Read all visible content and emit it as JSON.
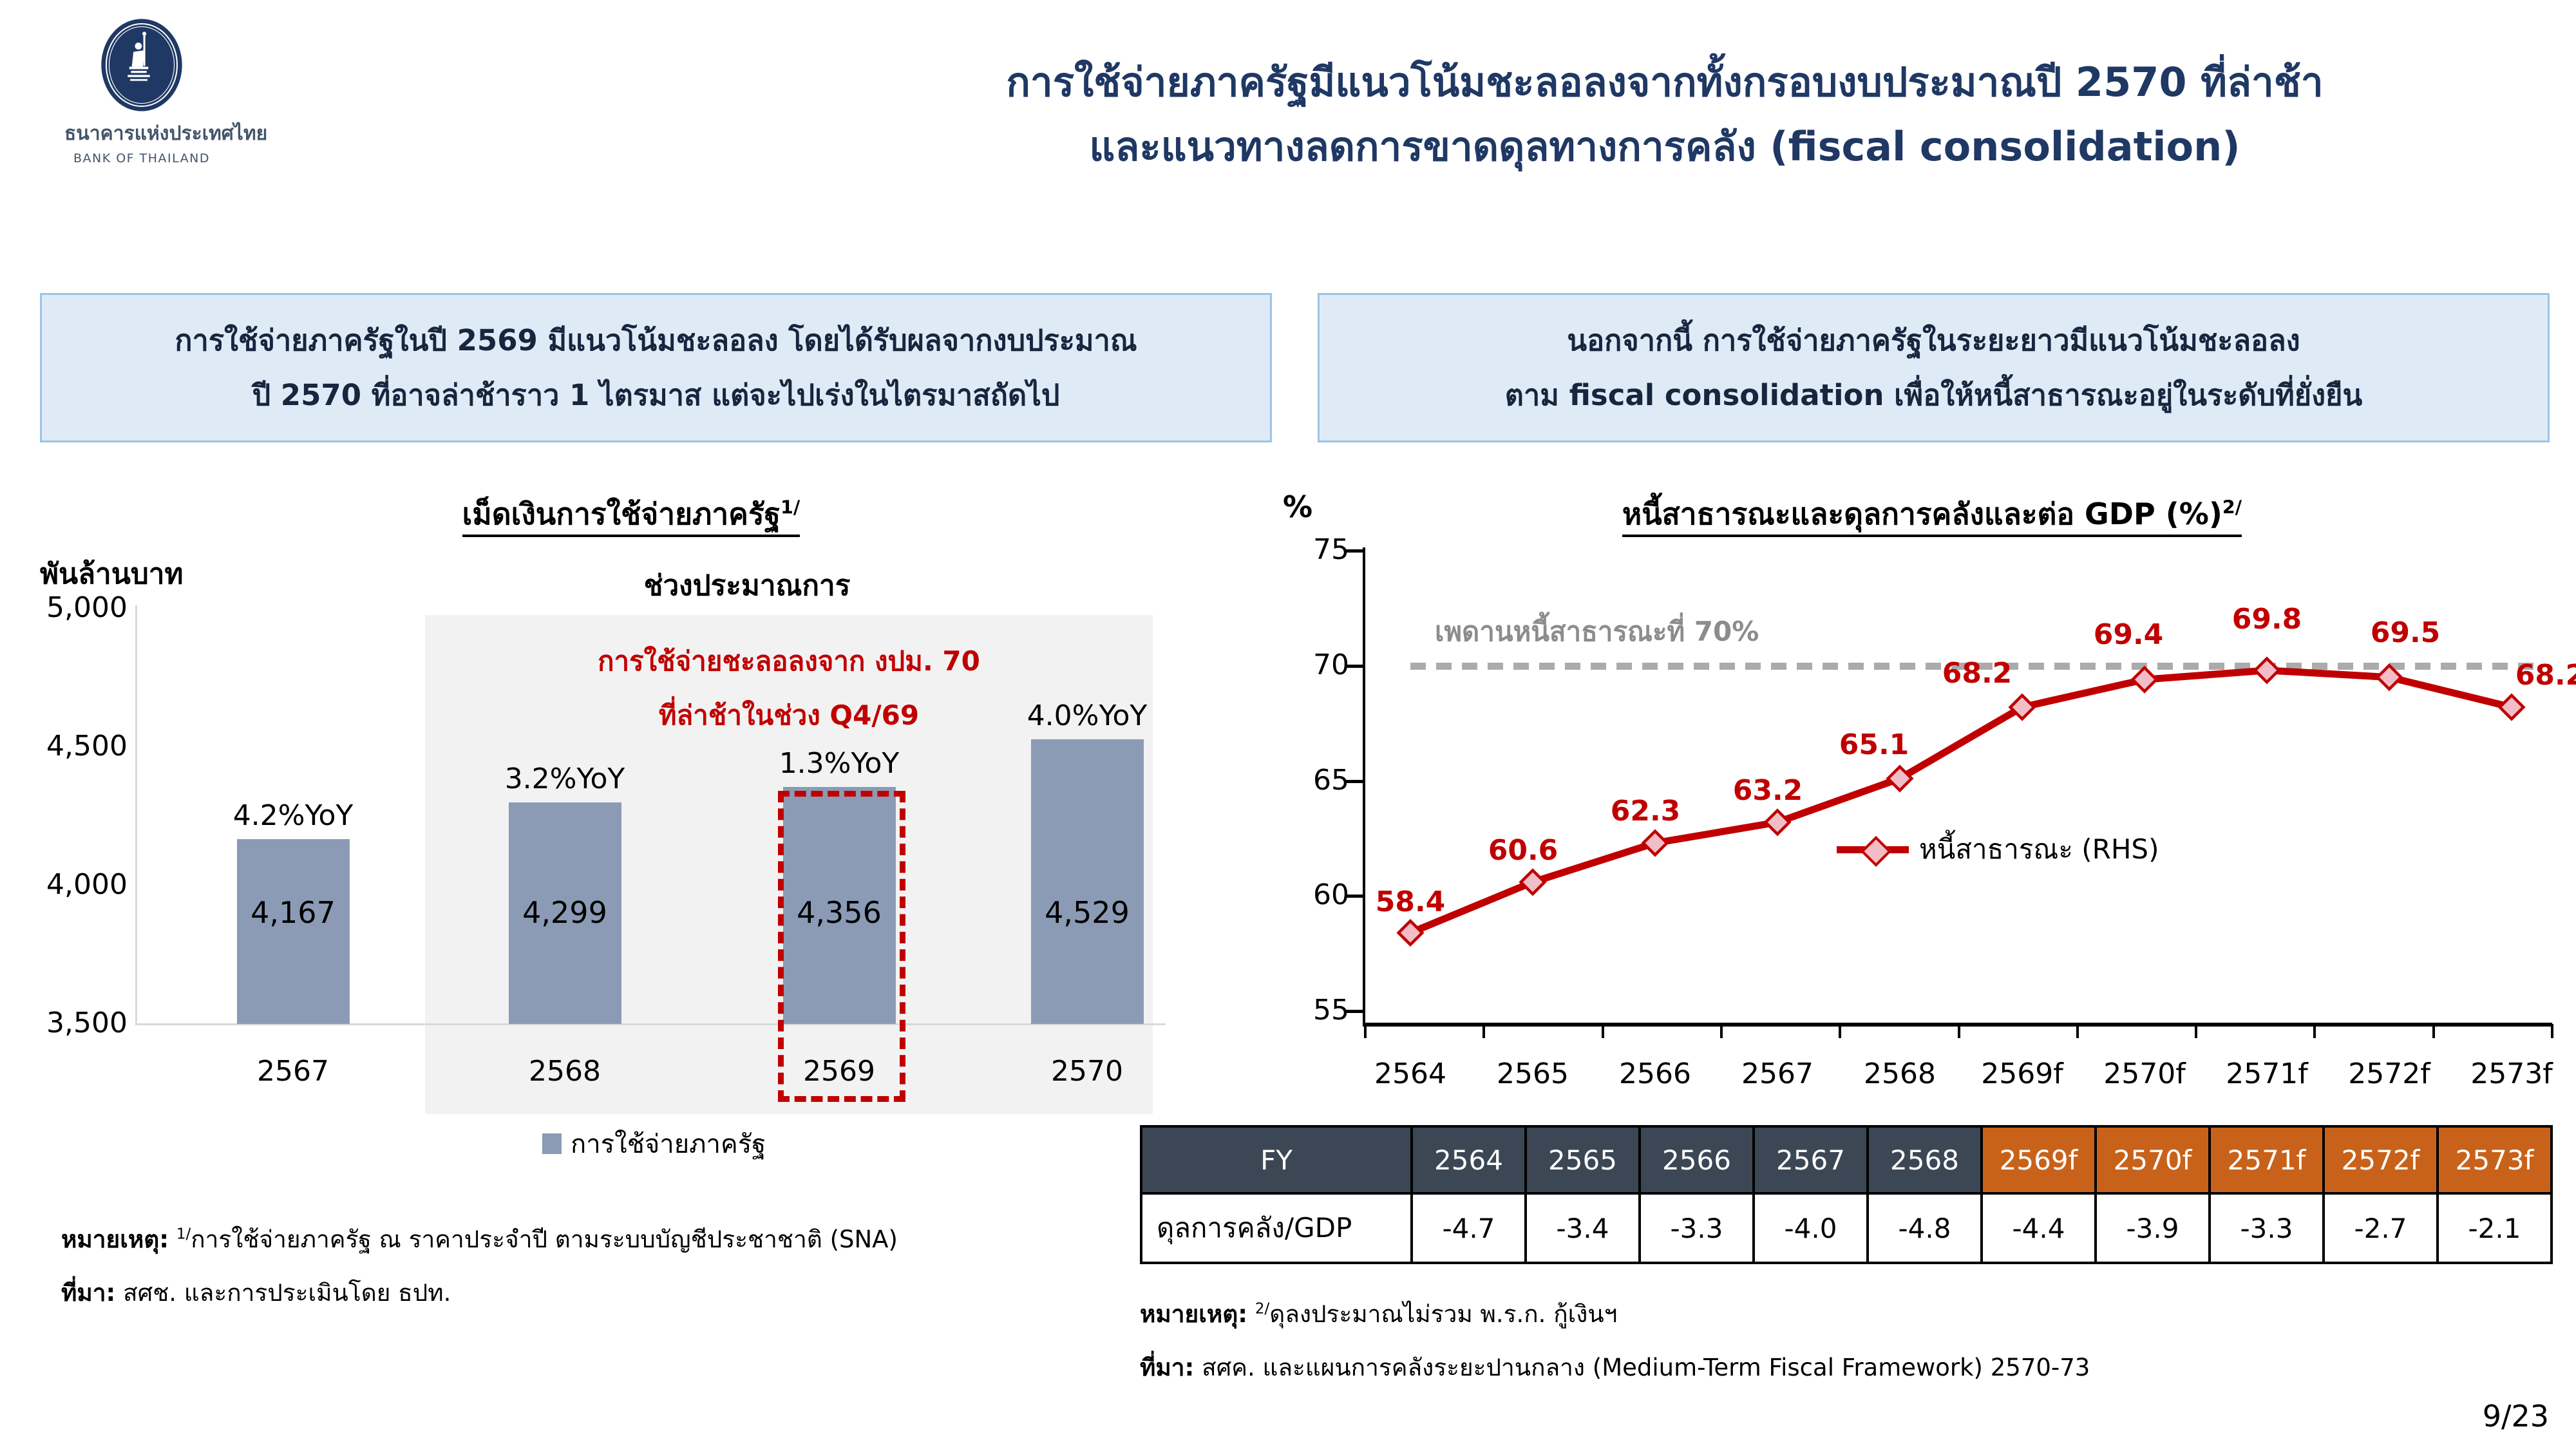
{
  "page": {
    "number": "9/23"
  },
  "logo": {
    "name_thai": "ธนาคารแห่งประเทศไทย",
    "name_eng": "BANK OF THAILAND"
  },
  "title": {
    "line1": "การใช้จ่ายภาครัฐมีแนวโน้มชะลอลงจากทั้งกรอบงบประมาณปี 2570 ที่ล่าช้า",
    "line2": "และแนวทางลดการขาดดุลทางการคลัง (fiscal consolidation)"
  },
  "callouts": {
    "left": {
      "line1": "การใช้จ่ายภาครัฐในปี 2569 มีแนวโน้มชะลอลง โดยได้รับผลจากงบประมาณ",
      "line2": "ปี 2570 ที่อาจล่าช้าราว 1 ไตรมาส แต่จะไปเร่งในไตรมาสถัดไป"
    },
    "right": {
      "line1": "นอกจากนี้ การใช้จ่ายภาครัฐในระยะยาวมีแนวโน้มชะลอลง",
      "line2": "ตาม fiscal consolidation เพื่อให้หนี้สาธารณะอยู่ในระดับที่ยั่งยืน"
    }
  },
  "chart_data": [
    {
      "type": "bar",
      "title": "เม็ดเงินการใช้จ่ายภาครัฐ",
      "title_superscript": "1/",
      "ylabel": "พันล้านบาท",
      "forecast_label": "ช่วงประมาณการ",
      "categories": [
        "2567",
        "2568",
        "2569",
        "2570"
      ],
      "values": [
        4167,
        4299,
        4356,
        4529
      ],
      "value_labels": [
        "4,167",
        "4,299",
        "4,356",
        "4,529"
      ],
      "yoy_labels": [
        "4.2%YoY",
        "3.2%YoY",
        "1.3%YoY",
        "4.0%YoY"
      ],
      "ylim": [
        3500,
        5000
      ],
      "y_ticks": [
        "5,000",
        "4,500",
        "4,000",
        "3,500"
      ],
      "forecast_from_index": 1,
      "highlight_index": 2,
      "annotation": [
        "การใช้จ่ายชะลอลงจาก งปม. 70",
        "ที่ล่าช้าในช่วง Q4/69"
      ],
      "legend": [
        "การใช้จ่ายภาครัฐ"
      ],
      "bar_color": "#8B9BB5"
    },
    {
      "type": "line",
      "title": "หนี้สาธารณะและดุลการคลังและต่อ GDP (%)",
      "title_superscript": "2/",
      "ylabel": "%",
      "x": [
        "2564",
        "2565",
        "2566",
        "2567",
        "2568",
        "2569f",
        "2570f",
        "2571f",
        "2572f",
        "2573f"
      ],
      "values": [
        58.4,
        60.6,
        62.3,
        63.2,
        65.1,
        68.2,
        69.4,
        69.8,
        69.5,
        68.2
      ],
      "value_labels": [
        "58.4",
        "60.6",
        "62.3",
        "63.2",
        "65.1",
        "68.2",
        "69.4",
        "69.8",
        "69.5",
        "68.2"
      ],
      "ylim": [
        55,
        75
      ],
      "y_ticks": [
        75,
        70,
        65,
        60,
        55
      ],
      "reference_line": {
        "value": 70,
        "label": "เพดานหนี้สาธารณะที่ 70%"
      },
      "legend": [
        "หนี้สาธารณะ (RHS)"
      ],
      "line_color": "#C00000",
      "marker_fill": "#F3BDC8"
    },
    {
      "type": "table",
      "header": [
        "FY",
        "2564",
        "2565",
        "2566",
        "2567",
        "2568",
        "2569f",
        "2570f",
        "2571f",
        "2572f",
        "2573f"
      ],
      "rows": [
        [
          "ดุลการคลัง/GDP",
          "-4.7",
          "-3.4",
          "-3.3",
          "-4.0",
          "-4.8",
          "-4.4",
          "-3.9",
          "-3.3",
          "-2.7",
          "-2.1"
        ]
      ],
      "forecast_from_col": 6
    }
  ],
  "footnotes": {
    "left": {
      "note_prefix": "หมายเหตุ:",
      "note_sup": "1/",
      "note_text": "การใช้จ่ายภาครัฐ ณ ราคาประจำปี ตามระบบบัญชีประชาชาติ (SNA)",
      "source_prefix": "ที่มา:",
      "source_text": "สศช. และการประเมินโดย ธปท."
    },
    "right": {
      "note_prefix": "หมายเหตุ:",
      "note_sup": "2/",
      "note_text": "ดุลงประมาณไม่รวม พ.ร.ก. กู้เงินฯ",
      "source_prefix": "ที่มา:",
      "source_text": "สศค. และแผนการคลังระยะปานกลาง (Medium-Term Fiscal Framework) 2570-73"
    }
  },
  "colors": {
    "title_navy": "#1F3864",
    "callout_bg": "#DEEBF7",
    "callout_border": "#9DC3E6",
    "bar_fill": "#8B9BB5",
    "accent_red": "#C00000",
    "forecast_gray": "#F2F2F2",
    "ceiling_gray": "#ABABAB",
    "table_header_navy": "#3B4754",
    "table_header_orange": "#C8621A"
  }
}
